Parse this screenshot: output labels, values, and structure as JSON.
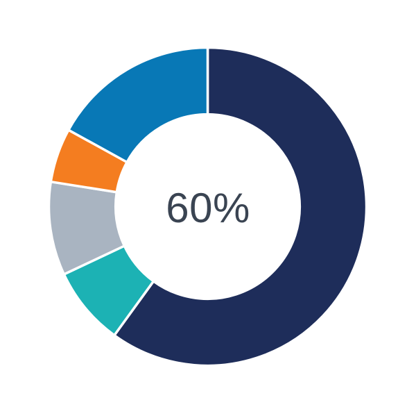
{
  "chart_data": {
    "type": "pie",
    "subtype": "donut",
    "center_label": "60%",
    "center_label_color": "#3a4452",
    "direction": "clockwise",
    "start_angle_deg": 0,
    "inner_radius_ratio": 0.58,
    "segment_border_color": "#ffffff",
    "legend": "none",
    "segments": [
      {
        "name": "navy",
        "value": 60,
        "color": "#1e2d5a"
      },
      {
        "name": "teal",
        "value": 8,
        "color": "#1cb2b4"
      },
      {
        "name": "gray",
        "value": 9.5,
        "color": "#a9b4c1"
      },
      {
        "name": "orange",
        "value": 5.5,
        "color": "#f47d20"
      },
      {
        "name": "blue",
        "value": 17,
        "color": "#0878b6"
      }
    ]
  }
}
